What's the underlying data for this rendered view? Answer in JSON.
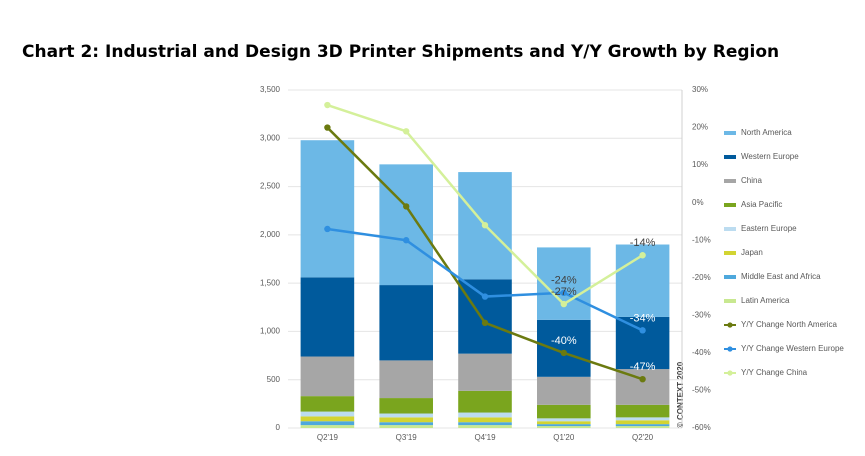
{
  "chart_data": {
    "type": "bar",
    "stacked": true,
    "title": "Chart 2: Industrial and Design 3D Printer Shipments and Y/Y Growth by Region",
    "categories": [
      "Q2'19",
      "Q3'19",
      "Q4'19",
      "Q1'20",
      "Q2'20"
    ],
    "series": [
      {
        "name": "North America",
        "color": "#6cb8e6",
        "values": [
          1420,
          1250,
          1110,
          750,
          750
        ]
      },
      {
        "name": "Western Europe",
        "color": "#005a9c",
        "values": [
          820,
          780,
          770,
          590,
          540
        ]
      },
      {
        "name": "China",
        "color": "#a6a6a6",
        "values": [
          410,
          390,
          385,
          290,
          370
        ]
      },
      {
        "name": "Asia Pacific",
        "color": "#7aa51e",
        "values": [
          160,
          160,
          225,
          140,
          130
        ]
      },
      {
        "name": "Eastern Europe",
        "color": "#bcdcf0",
        "values": [
          50,
          40,
          50,
          30,
          30
        ]
      },
      {
        "name": "Japan",
        "color": "#d2d432",
        "values": [
          50,
          50,
          50,
          30,
          40
        ]
      },
      {
        "name": "Middle East and Africa",
        "color": "#4ea8dc",
        "values": [
          40,
          30,
          30,
          20,
          20
        ]
      },
      {
        "name": "Latin America",
        "color": "#c8e890",
        "values": [
          30,
          30,
          30,
          20,
          20
        ]
      },
      {
        "name": "Y/Y Change North America",
        "color": "#6b7a10",
        "type": "line",
        "axis": "y2",
        "values": [
          20,
          -1,
          -32,
          -40,
          -47
        ],
        "value_labels": [
          null,
          null,
          null,
          "-40%",
          "-47%"
        ]
      },
      {
        "name": "Y/Y Change Western Europe",
        "color": "#2f8fe0",
        "type": "line",
        "axis": "y2",
        "values": [
          -7,
          -10,
          -25,
          -24,
          -34
        ],
        "value_labels": [
          null,
          null,
          null,
          "-24%",
          "-34%"
        ]
      },
      {
        "name": "Y/Y Change China",
        "color": "#d4f09a",
        "type": "line",
        "axis": "y2",
        "values": [
          26,
          19,
          -6,
          -27,
          -14
        ],
        "value_labels": [
          null,
          null,
          null,
          "-27%",
          "-14%"
        ]
      }
    ],
    "ylim": [
      0,
      3500
    ],
    "yticks": [
      0,
      500,
      {
        "value": 1000,
        "label": "1,000"
      },
      {
        "value": 1500,
        "label": "1,500"
      },
      {
        "value": 2000,
        "label": "2,000"
      },
      {
        "value": 2500,
        "label": "2,500"
      },
      {
        "value": 3000,
        "label": "3,000"
      },
      {
        "value": 3500,
        "label": "3,500"
      }
    ],
    "y2lim": [
      -60,
      30
    ],
    "y2ticks": [
      {
        "value": -60,
        "label": "-60%"
      },
      {
        "value": -50,
        "label": "-50%"
      },
      {
        "value": -40,
        "label": "-40%"
      },
      {
        "value": -30,
        "label": "-30%"
      },
      {
        "value": -20,
        "label": "-20%"
      },
      {
        "value": -10,
        "label": "-10%"
      },
      {
        "value": 0,
        "label": "0%"
      },
      {
        "value": 10,
        "label": "10%"
      },
      {
        "value": 20,
        "label": "20%"
      },
      {
        "value": 30,
        "label": "30%"
      }
    ],
    "grid": true,
    "legend": "right",
    "annotation": "© CONTEXT 2020"
  }
}
